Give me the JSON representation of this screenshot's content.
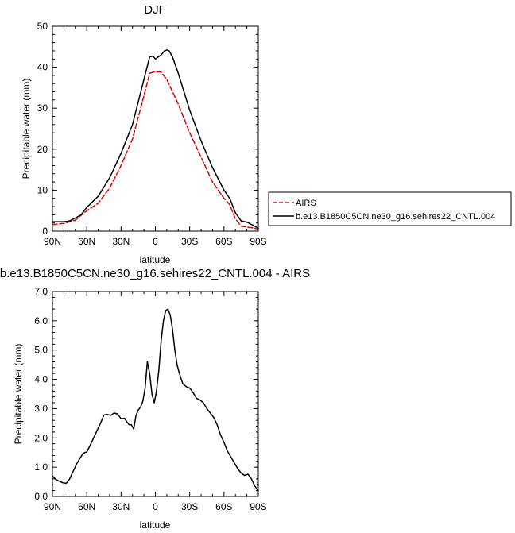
{
  "chart_data": [
    {
      "type": "line",
      "title": "DJF",
      "xlabel": "latitude",
      "ylabel": "Precipitable water (mm)",
      "x_order": "north-to-south",
      "xlim": [
        90,
        -90
      ],
      "ylim": [
        0,
        50
      ],
      "xticks": [
        90,
        60,
        30,
        0,
        -30,
        -60,
        -90
      ],
      "xtick_labels": [
        "90N",
        "60N",
        "30N",
        "0",
        "30S",
        "60S",
        "90S"
      ],
      "yticks": [
        0,
        10,
        20,
        30,
        40,
        50
      ],
      "ytick_labels": [
        "0",
        "10",
        "20",
        "30",
        "40",
        "50"
      ],
      "grid": false,
      "legend_position": "right",
      "series": [
        {
          "name": "AIRS",
          "color": "#e00000",
          "dash": "dashed",
          "x": [
            90,
            80,
            70,
            60,
            50,
            40,
            30,
            20,
            10,
            5,
            2,
            0,
            -5,
            -10,
            -20,
            -30,
            -40,
            -50,
            -60,
            -65,
            -70,
            -75,
            -80,
            -85,
            -90
          ],
          "y": [
            1.6,
            1.9,
            2.7,
            5.0,
            6.8,
            10.5,
            16.0,
            22.5,
            33.0,
            38.5,
            38.8,
            38.9,
            38.8,
            37.0,
            31.0,
            24.0,
            18.0,
            12.0,
            8.0,
            6.5,
            3.0,
            1.2,
            1.0,
            0.8,
            0.5
          ]
        },
        {
          "name": "b.e13.B1850C5CN.ne30_g16.sehires22_CNTL.004",
          "color": "#000000",
          "dash": "solid",
          "x": [
            90,
            80,
            75,
            70,
            65,
            60,
            50,
            40,
            30,
            20,
            10,
            5,
            2,
            0,
            -5,
            -8,
            -10,
            -12,
            -15,
            -20,
            -30,
            -40,
            -50,
            -60,
            -65,
            -70,
            -75,
            -80,
            -85,
            -90
          ],
          "y": [
            2.3,
            2.3,
            2.5,
            3.2,
            4.0,
            5.8,
            8.5,
            13.0,
            19.0,
            26.0,
            37.0,
            42.5,
            42.7,
            42.0,
            43.0,
            44.0,
            44.2,
            44.0,
            42.5,
            38.5,
            29.5,
            22.0,
            15.5,
            10.0,
            8.0,
            4.5,
            2.5,
            2.2,
            1.5,
            0.7
          ]
        }
      ]
    },
    {
      "type": "line",
      "title": "b.e13.B1850C5CN.ne30_g16.sehires22_CNTL.004 - AIRS",
      "xlabel": "latitude",
      "ylabel": "Precipitable water (mm)",
      "x_order": "north-to-south",
      "xlim": [
        90,
        -90
      ],
      "ylim": [
        0,
        7
      ],
      "xticks": [
        90,
        60,
        30,
        0,
        -30,
        -60,
        -90
      ],
      "xtick_labels": [
        "90N",
        "60N",
        "30N",
        "0",
        "30S",
        "60S",
        "90S"
      ],
      "yticks": [
        0,
        1,
        2,
        3,
        4,
        5,
        6,
        7
      ],
      "ytick_labels": [
        "0.0",
        "1.0",
        "2.0",
        "3.0",
        "4.0",
        "5.0",
        "6.0",
        "7.0"
      ],
      "grid": false,
      "series": [
        {
          "color": "#000000",
          "x": [
            90,
            87,
            84,
            81,
            78,
            75,
            72,
            69,
            66,
            63,
            60,
            57,
            54,
            51,
            48,
            45,
            42,
            39,
            36,
            33,
            30,
            27,
            25,
            23,
            21,
            19,
            17,
            15,
            13,
            11,
            9,
            7,
            5,
            3,
            1,
            -1,
            -3,
            -5,
            -7,
            -9,
            -11,
            -13,
            -15,
            -17,
            -19,
            -21,
            -24,
            -27,
            -30,
            -33,
            -36,
            -39,
            -42,
            -45,
            -48,
            -51,
            -54,
            -57,
            -60,
            -63,
            -66,
            -69,
            -72,
            -75,
            -78,
            -81,
            -84,
            -87,
            -90
          ],
          "y": [
            0.7,
            0.58,
            0.52,
            0.47,
            0.45,
            0.6,
            0.85,
            1.1,
            1.3,
            1.48,
            1.52,
            1.75,
            2.0,
            2.25,
            2.5,
            2.78,
            2.8,
            2.77,
            2.85,
            2.82,
            2.65,
            2.67,
            2.55,
            2.45,
            2.45,
            2.3,
            2.75,
            2.95,
            3.05,
            3.25,
            3.7,
            4.6,
            4.2,
            3.5,
            3.2,
            3.6,
            4.3,
            5.3,
            6.0,
            6.35,
            6.4,
            6.2,
            5.7,
            5.0,
            4.5,
            4.2,
            3.85,
            3.75,
            3.7,
            3.55,
            3.35,
            3.3,
            3.2,
            3.0,
            2.85,
            2.7,
            2.45,
            2.1,
            1.85,
            1.55,
            1.35,
            1.15,
            0.95,
            0.8,
            0.72,
            0.76,
            0.6,
            0.35,
            0.2
          ]
        }
      ]
    }
  ]
}
